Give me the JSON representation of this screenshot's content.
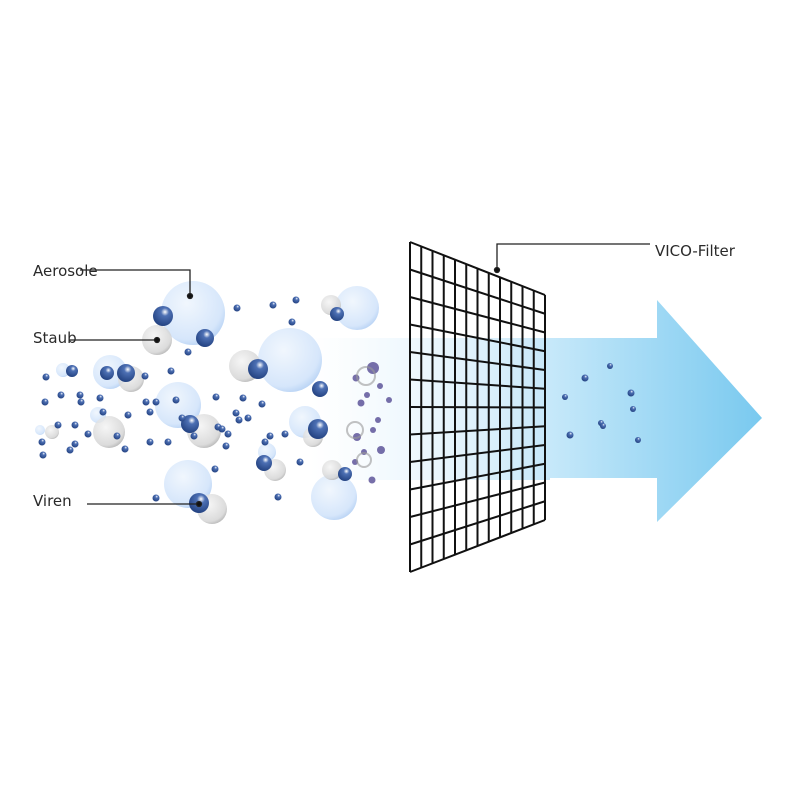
{
  "labels": {
    "aerosols": "Aerosole",
    "dust": "Staub",
    "viruses": "Viren",
    "filter": "VICO-Filter"
  },
  "colors": {
    "aerosol": "#cfe4fb",
    "dust": "#d6d6d6",
    "virus": "#264a8c",
    "arrow_light": "#c2e6f8",
    "arrow_dark": "#7dcbf0",
    "grid": "#111111"
  },
  "icons": [
    "filter-grid-icon",
    "airflow-arrow-icon"
  ]
}
